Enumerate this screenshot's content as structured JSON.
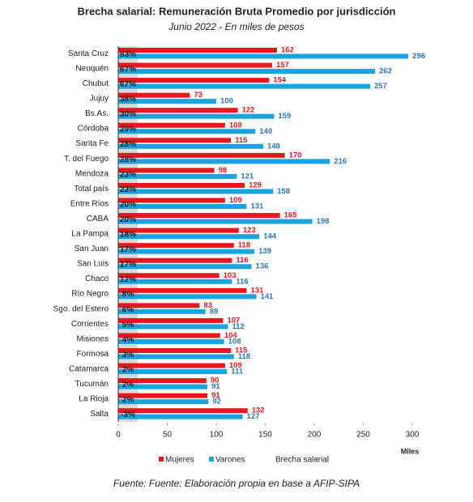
{
  "chart_data": {
    "type": "bar",
    "orientation": "horizontal",
    "title": "Brecha salarial: Remuneración Bruta Promedio por jurisdicción",
    "subtitle": "Junio 2022 - En miles de pesos",
    "x_label": "Miles",
    "source": "Fuente: Fuente: Elaboración propia en base a AFIP-SIPA",
    "categories": [
      "Santa Cruz",
      "Neuquén",
      "Chubut",
      "Jujuy",
      "Bs.As.",
      "Córdoba",
      "Santa Fe",
      "T. del Fuego",
      "Mendoza",
      "Total país",
      "Entre Ríos",
      "CABA",
      "La Pampa",
      "San Juan",
      "San Luis",
      "Chaco",
      "Río Negro",
      "Sgo. del Estero",
      "Corrientes",
      "Misiones",
      "Formosa",
      "Catamarca",
      "Tucumán",
      "La Rioja",
      "Salta"
    ],
    "series": [
      {
        "name": "Mujeres",
        "color": "#e8171f",
        "values": [
          162,
          157,
          154,
          73,
          122,
          109,
          115,
          170,
          98,
          129,
          109,
          165,
          123,
          118,
          116,
          103,
          131,
          83,
          107,
          104,
          115,
          109,
          90,
          91,
          132
        ]
      },
      {
        "name": "Varones",
        "color": "#1aa3e0",
        "values": [
          296,
          262,
          257,
          100,
          159,
          140,
          148,
          216,
          121,
          158,
          131,
          198,
          144,
          139,
          136,
          116,
          141,
          89,
          112,
          108,
          118,
          111,
          91,
          92,
          127
        ]
      },
      {
        "name": "Brecha salarial",
        "color": "#d9d9d9",
        "values": [
          83,
          67,
          67,
          38,
          30,
          29,
          28,
          28,
          23,
          23,
          20,
          20,
          18,
          17,
          17,
          12,
          8,
          6,
          5,
          4,
          3,
          2,
          2,
          2,
          -3
        ],
        "value_labels": [
          "83%",
          "67%",
          "67%",
          "38%",
          "30%",
          "29%",
          "28%",
          "28%",
          "23%",
          "23%",
          "20%",
          "20%",
          "18%",
          "17%",
          "17%",
          "12%",
          "8%",
          "6%",
          "5%",
          "4%",
          "3%",
          "2%",
          "2%",
          "2%",
          "-3%"
        ]
      }
    ],
    "xlim": [
      0,
      300
    ],
    "xticks": [
      0,
      50,
      100,
      150,
      200,
      250,
      300
    ]
  }
}
